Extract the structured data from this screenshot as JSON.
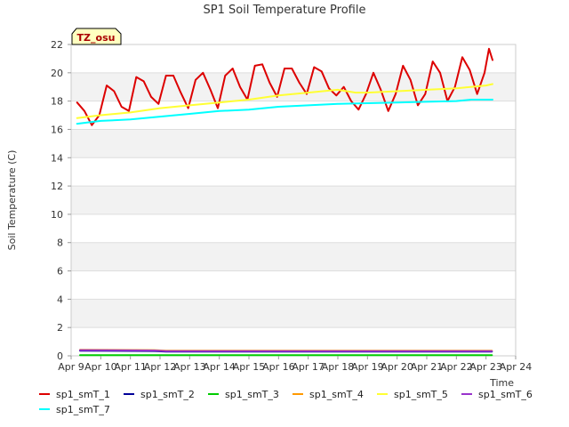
{
  "chart_data": {
    "type": "line",
    "title": "SP1 Soil Temperature Profile",
    "xlabel": "Time",
    "ylabel": "Soil Temperature (C)",
    "ylim": [
      0,
      22
    ],
    "xlim": [
      0,
      15
    ],
    "yticks": [
      0,
      2,
      4,
      6,
      8,
      10,
      12,
      14,
      16,
      18,
      20,
      22
    ],
    "xticks": [
      {
        "x": 0,
        "label": "Apr 9"
      },
      {
        "x": 1,
        "label": "Apr 10"
      },
      {
        "x": 2,
        "label": "Apr 11"
      },
      {
        "x": 3,
        "label": "Apr 12"
      },
      {
        "x": 4,
        "label": "Apr 13"
      },
      {
        "x": 5,
        "label": "Apr 14"
      },
      {
        "x": 6,
        "label": "Apr 15"
      },
      {
        "x": 7,
        "label": "Apr 16"
      },
      {
        "x": 8,
        "label": "Apr 17"
      },
      {
        "x": 9,
        "label": "Apr 18"
      },
      {
        "x": 10,
        "label": "Apr 19"
      },
      {
        "x": 11,
        "label": "Apr 20"
      },
      {
        "x": 12,
        "label": "Apr 21"
      },
      {
        "x": 13,
        "label": "Apr 22"
      },
      {
        "x": 14,
        "label": "Apr 23"
      },
      {
        "x": 15,
        "label": "Apr 24"
      }
    ],
    "x_unit": "days since Apr 9",
    "annotation": "TZ_osu",
    "series": [
      {
        "name": "sp1_smT_1",
        "color": "#dd0000",
        "x": [
          0.2,
          0.45,
          0.7,
          0.95,
          1.2,
          1.45,
          1.7,
          1.95,
          2.2,
          2.45,
          2.7,
          2.95,
          3.2,
          3.45,
          3.7,
          3.95,
          4.2,
          4.45,
          4.7,
          4.95,
          5.2,
          5.45,
          5.7,
          5.95,
          6.2,
          6.45,
          6.7,
          6.95,
          7.2,
          7.45,
          7.7,
          7.95,
          8.2,
          8.45,
          8.7,
          8.95,
          9.2,
          9.45,
          9.7,
          9.95,
          10.2,
          10.45,
          10.7,
          10.95,
          11.2,
          11.45,
          11.7,
          11.95,
          12.2,
          12.45,
          12.7,
          12.95,
          13.2,
          13.45,
          13.7,
          13.95,
          14.1,
          14.22
        ],
        "y": [
          17.9,
          17.3,
          16.3,
          17.0,
          19.1,
          18.7,
          17.6,
          17.3,
          19.7,
          19.4,
          18.3,
          17.8,
          19.8,
          19.8,
          18.6,
          17.5,
          19.5,
          20.0,
          18.8,
          17.5,
          19.8,
          20.3,
          19.0,
          18.1,
          20.5,
          20.6,
          19.3,
          18.3,
          20.3,
          20.3,
          19.3,
          18.5,
          20.4,
          20.1,
          18.9,
          18.4,
          19.0,
          18.0,
          17.4,
          18.5,
          20.0,
          18.8,
          17.3,
          18.5,
          20.5,
          19.5,
          17.7,
          18.5,
          20.8,
          20.0,
          18.0,
          19.0,
          21.1,
          20.2,
          18.5,
          20.0,
          21.7,
          20.9
        ]
      },
      {
        "name": "sp1_smT_2",
        "color": "#000099",
        "x": [
          0.3,
          2.8,
          3.2,
          14.2
        ],
        "y": [
          0.36,
          0.34,
          0.3,
          0.3
        ]
      },
      {
        "name": "sp1_smT_3",
        "color": "#00cc00",
        "x": [
          0.3,
          14.2
        ],
        "y": [
          0.05,
          0.05
        ]
      },
      {
        "name": "sp1_smT_4",
        "color": "#ff9900",
        "x": [
          0.3,
          2.8,
          3.2,
          14.2
        ],
        "y": [
          0.42,
          0.4,
          0.36,
          0.36
        ]
      },
      {
        "name": "sp1_smT_5",
        "color": "#ffff33",
        "x": [
          0.2,
          1.0,
          2.0,
          3.0,
          4.0,
          5.0,
          6.0,
          7.0,
          8.0,
          9.0,
          9.6,
          10.0,
          11.0,
          12.0,
          13.0,
          14.0,
          14.22
        ],
        "y": [
          16.8,
          17.0,
          17.2,
          17.5,
          17.7,
          17.9,
          18.1,
          18.4,
          18.6,
          18.8,
          18.6,
          18.6,
          18.7,
          18.8,
          18.9,
          19.1,
          19.2
        ]
      },
      {
        "name": "sp1_smT_6",
        "color": "#9933cc",
        "x": [
          0.3,
          2.8,
          3.2,
          14.2
        ],
        "y": [
          0.4,
          0.38,
          0.33,
          0.33
        ]
      },
      {
        "name": "sp1_smT_7",
        "color": "#00ffff",
        "x": [
          0.2,
          1.0,
          2.0,
          3.0,
          4.0,
          5.0,
          6.0,
          7.0,
          8.0,
          9.0,
          10.0,
          11.0,
          12.0,
          13.0,
          13.5,
          14.22
        ],
        "y": [
          16.4,
          16.6,
          16.7,
          16.9,
          17.1,
          17.3,
          17.4,
          17.6,
          17.7,
          17.8,
          17.85,
          17.9,
          17.95,
          18.0,
          18.1,
          18.1
        ]
      }
    ]
  }
}
